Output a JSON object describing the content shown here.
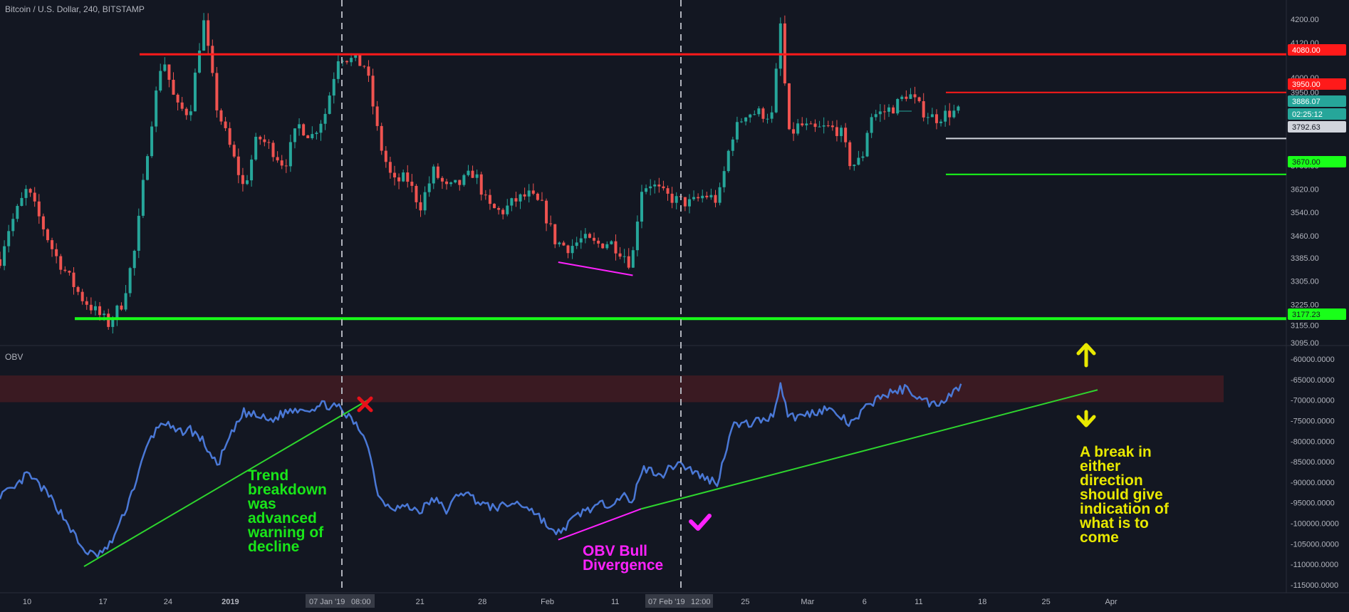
{
  "header": {
    "title": "Bitcoin / U.S. Dollar, 240, BITSTAMP"
  },
  "obv_panel": {
    "title": "OBV"
  },
  "colors": {
    "background": "#131722",
    "up": "#26a69a",
    "down": "#ef5350",
    "red_line": "#ff1a1a",
    "green_line": "#19ff19",
    "obv_line": "#4a78d6",
    "magenta": "#ff22ff",
    "yellow": "#e8e800",
    "trend_green": "#2ed62e",
    "zone": "#3a1a22"
  },
  "chart_data": [
    {
      "type": "candlestick",
      "title": "Bitcoin / U.S. Dollar, 240, BITSTAMP",
      "ylim": [
        3095,
        4250
      ],
      "y_ticks": [
        "4200.00",
        "4120.00",
        "4000.00",
        "3950.00",
        "3700.00",
        "3620.00",
        "3540.00",
        "3460.00",
        "3385.00",
        "3305.00",
        "3225.00",
        "3155.00",
        "3095.00"
      ],
      "x_ticks": [
        "10",
        "17",
        "24",
        "2019",
        "14",
        "21",
        "28",
        "Feb",
        "11",
        "18",
        "25",
        "Mar",
        "6",
        "11",
        "18",
        "25",
        "Apr"
      ],
      "price_path": [
        [
          0,
          3380
        ],
        [
          0.5,
          3470
        ],
        [
          2,
          3620
        ],
        [
          4,
          3400
        ],
        [
          6,
          3250
        ],
        [
          8,
          3160
        ],
        [
          9,
          3230
        ],
        [
          10,
          3420
        ],
        [
          11,
          3800
        ],
        [
          12,
          4080
        ],
        [
          13,
          3900
        ],
        [
          14,
          3880
        ],
        [
          15,
          4200
        ],
        [
          16,
          3900
        ],
        [
          17,
          3760
        ],
        [
          18,
          3620
        ],
        [
          19,
          3800
        ],
        [
          20,
          3760
        ],
        [
          21,
          3700
        ],
        [
          22,
          3840
        ],
        [
          23,
          3800
        ],
        [
          24,
          3880
        ],
        [
          25,
          4080
        ],
        [
          26,
          4060
        ],
        [
          27,
          4040
        ],
        [
          28,
          3780
        ],
        [
          29,
          3640
        ],
        [
          30,
          3660
        ],
        [
          31,
          3560
        ],
        [
          32,
          3680
        ],
        [
          33,
          3620
        ],
        [
          34,
          3640
        ],
        [
          35,
          3680
        ],
        [
          36,
          3560
        ],
        [
          37,
          3540
        ],
        [
          38,
          3580
        ],
        [
          39,
          3600
        ],
        [
          40,
          3560
        ],
        [
          41,
          3440
        ],
        [
          42,
          3420
        ],
        [
          43,
          3450
        ],
        [
          44,
          3430
        ],
        [
          45,
          3440
        ],
        [
          46,
          3400
        ],
        [
          46.6,
          3360
        ],
        [
          47.3,
          3620
        ],
        [
          48,
          3640
        ],
        [
          49,
          3600
        ],
        [
          50,
          3580
        ],
        [
          51,
          3570
        ],
        [
          52,
          3600
        ],
        [
          53,
          3580
        ],
        [
          54,
          3800
        ],
        [
          55,
          3880
        ],
        [
          56,
          3880
        ],
        [
          57,
          3870
        ],
        [
          57.6,
          4180
        ],
        [
          58.2,
          3800
        ],
        [
          59,
          3840
        ],
        [
          60,
          3820
        ],
        [
          61,
          3830
        ],
        [
          62,
          3820
        ],
        [
          62.8,
          3700
        ],
        [
          63.6,
          3720
        ],
        [
          64.2,
          3870
        ],
        [
          65,
          3880
        ],
        [
          66,
          3900
        ],
        [
          67,
          3950
        ],
        [
          68,
          3890
        ],
        [
          69,
          3860
        ],
        [
          70,
          3880
        ],
        [
          71,
          3886.07
        ]
      ],
      "horizontal_levels": [
        {
          "price": 4080,
          "label": "4080.00",
          "color": "#ff1a1a"
        },
        {
          "price": 3950,
          "label": "3950.00",
          "color": "#ff1a1a"
        },
        {
          "price": 3886.07,
          "label": "3886.07",
          "color": "#26a69a"
        },
        {
          "price": 3870,
          "label": "02:25:12",
          "color": "#26a69a"
        },
        {
          "price": 3792.63,
          "label": "3792.63",
          "color": "#d1d4dc"
        },
        {
          "price": 3670,
          "label": "3670.00",
          "color": "#19ff19"
        },
        {
          "price": 3177.23,
          "label": "3177.23",
          "color": "#19ff19"
        }
      ],
      "divergence_line": {
        "from": [
          41.2,
          3370
        ],
        "to": [
          46.7,
          3325
        ],
        "color": "#ff22ff"
      }
    },
    {
      "type": "line",
      "title": "OBV",
      "ylim": [
        -116000,
        -60000
      ],
      "y_ticks": [
        "-60000.0000",
        "-65000.0000",
        "-70000.0000",
        "-75000.0000",
        "-80000.0000",
        "-85000.0000",
        "-90000.0000",
        "-95000.0000",
        "-100000.0000",
        "-105000.0000",
        "-110000.0000",
        "-115000.0000"
      ],
      "series": [
        {
          "values": [
            [
              0,
              -93000
            ],
            [
              1,
              -92000
            ],
            [
              2,
              -88000
            ],
            [
              3,
              -91000
            ],
            [
              4,
              -95000
            ],
            [
              5,
              -100000
            ],
            [
              6,
              -106000
            ],
            [
              7,
              -108000
            ],
            [
              8,
              -106000
            ],
            [
              9,
              -99000
            ],
            [
              10,
              -90000
            ],
            [
              11,
              -80000
            ],
            [
              12,
              -75000
            ],
            [
              13,
              -78000
            ],
            [
              14,
              -77000
            ],
            [
              15,
              -80000
            ],
            [
              16,
              -86000
            ],
            [
              17,
              -79000
            ],
            [
              18,
              -73000
            ],
            [
              19,
              -74000
            ],
            [
              20,
              -75000
            ],
            [
              21,
              -73000
            ],
            [
              22,
              -72000
            ],
            [
              23,
              -72000
            ],
            [
              24,
              -71000
            ],
            [
              25,
              -72000
            ],
            [
              26,
              -75000
            ],
            [
              27,
              -79000
            ],
            [
              28,
              -94000
            ],
            [
              29,
              -96000
            ],
            [
              30,
              -96000
            ],
            [
              31,
              -97000
            ],
            [
              32,
              -94000
            ],
            [
              33,
              -97000
            ],
            [
              34,
              -92000
            ],
            [
              35,
              -94000
            ],
            [
              36,
              -96000
            ],
            [
              37,
              -96000
            ],
            [
              38,
              -95000
            ],
            [
              39,
              -96000
            ],
            [
              40,
              -99000
            ],
            [
              41,
              -103000
            ],
            [
              42,
              -100000
            ],
            [
              43,
              -97000
            ],
            [
              44,
              -96000
            ],
            [
              45,
              -95000
            ],
            [
              46,
              -93000
            ],
            [
              46.6,
              -96000
            ],
            [
              47.3,
              -87000
            ],
            [
              48,
              -87000
            ],
            [
              49,
              -88000
            ],
            [
              50,
              -85000
            ],
            [
              51,
              -87000
            ],
            [
              52,
              -89000
            ],
            [
              53,
              -90000
            ],
            [
              54,
              -76000
            ],
            [
              55,
              -76000
            ],
            [
              56,
              -75000
            ],
            [
              57,
              -74000
            ],
            [
              57.6,
              -66000
            ],
            [
              58.2,
              -74000
            ],
            [
              59,
              -74000
            ],
            [
              60,
              -73000
            ],
            [
              61,
              -72000
            ],
            [
              62,
              -74000
            ],
            [
              62.8,
              -76000
            ],
            [
              63.6,
              -73000
            ],
            [
              64.2,
              -71000
            ],
            [
              65,
              -69000
            ],
            [
              66,
              -68000
            ],
            [
              67,
              -67000
            ],
            [
              68,
              -70000
            ],
            [
              69,
              -71000
            ],
            [
              70,
              -69000
            ],
            [
              71,
              -66000
            ]
          ]
        }
      ],
      "zone": [
        -64000,
        -70500
      ],
      "trend_lines": [
        {
          "from": [
            6.2,
            -110500
          ],
          "to": [
            27.4,
            -69500
          ],
          "color": "#2ed62e"
        },
        {
          "from": [
            47.3,
            -96500
          ],
          "to": [
            81,
            -67500
          ],
          "color": "#2ed62e"
        },
        {
          "from": [
            41.2,
            -104000
          ],
          "to": [
            47.3,
            -96500
          ],
          "color": "#ff22ff"
        }
      ]
    }
  ],
  "annotations": {
    "trend_text": [
      "Trend",
      "breakdown",
      "was",
      "advanced",
      "warning of",
      "decline"
    ],
    "obv_text": [
      "OBV Bull",
      "Divergence"
    ],
    "break_text": [
      "A break in",
      "either",
      "direction",
      "should give",
      "indication of",
      "what is to",
      "come"
    ],
    "cross_icon": "cross-icon",
    "check_icon": "check-icon",
    "arrow_up_icon": "arrow-up-icon",
    "arrow_down_icon": "arrow-down-icon"
  },
  "crosshair_labels": [
    "07 Jan '19",
    "08:00",
    "07 Feb '19",
    "12:00"
  ]
}
